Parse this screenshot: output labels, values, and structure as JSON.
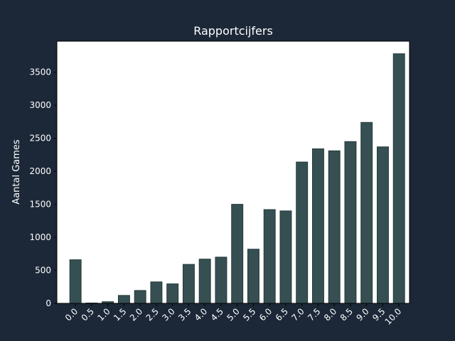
{
  "colors": {
    "background": "#1c2838",
    "plot_background": "#ffffff",
    "bar_fill": "#364f52",
    "bar_edge": "#263a3c",
    "text": "#ffffff"
  },
  "chart_data": {
    "type": "bar",
    "title": "Rapportcijfers",
    "xlabel": "",
    "ylabel": "Aantal Games",
    "categories": [
      "0.0",
      "0.5",
      "1.0",
      "1.5",
      "2.0",
      "2.5",
      "3.0",
      "3.5",
      "4.0",
      "4.5",
      "5.0",
      "5.5",
      "6.0",
      "6.5",
      "7.0",
      "7.5",
      "8.0",
      "8.5",
      "9.0",
      "9.5",
      "10.0"
    ],
    "values": [
      660,
      5,
      25,
      120,
      195,
      325,
      295,
      590,
      670,
      700,
      1500,
      820,
      1420,
      1400,
      2140,
      2340,
      2310,
      2450,
      2740,
      2370,
      3780
    ],
    "yticks": [
      0,
      500,
      1000,
      1500,
      2000,
      2500,
      3000,
      3500
    ],
    "ylim": [
      0,
      3970
    ],
    "grid": false,
    "legend": "none"
  }
}
